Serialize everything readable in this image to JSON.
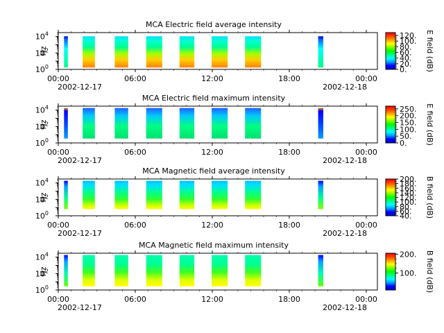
{
  "chart_data": [
    {
      "type": "heatmap",
      "title": "MCA  Electric field average intensity",
      "ylabel": "Hz",
      "yscale": "log",
      "ylim": [
        1,
        30000
      ],
      "yticks": [
        {
          "v": 1,
          "b": "10",
          "e": "0"
        },
        {
          "v": 100,
          "b": "10",
          "e": "2"
        },
        {
          "v": 10000,
          "b": "10",
          "e": "4"
        }
      ],
      "xticks": [
        "00:00",
        "06:00",
        "12:00",
        "18:00",
        "00:00"
      ],
      "xdates": [
        "2002-12-17",
        "2002-12-18"
      ],
      "colorbar_label": "E field (dB)",
      "clim": [
        0,
        130
      ],
      "cticks": [
        {
          "v": 0,
          "t": "0."
        },
        {
          "v": 20,
          "t": "20."
        },
        {
          "v": 40,
          "t": "40."
        },
        {
          "v": 60,
          "t": "60."
        },
        {
          "v": 80,
          "t": "80."
        },
        {
          "v": 100,
          "t": "100."
        },
        {
          "v": 120,
          "t": "120."
        }
      ],
      "style": "eavg"
    },
    {
      "type": "heatmap",
      "title": "MCA  Electric field maximum intensity",
      "ylabel": "Hz",
      "yscale": "log",
      "ylim": [
        1,
        30000
      ],
      "yticks": [
        {
          "v": 1,
          "b": "10",
          "e": "0"
        },
        {
          "v": 100,
          "b": "10",
          "e": "2"
        },
        {
          "v": 10000,
          "b": "10",
          "e": "4"
        }
      ],
      "xticks": [
        "00:00",
        "06:00",
        "12:00",
        "18:00",
        "00:00"
      ],
      "xdates": [
        "2002-12-17",
        "2002-12-18"
      ],
      "colorbar_label": "E field (dB)",
      "clim": [
        0,
        270
      ],
      "cticks": [
        {
          "v": 0,
          "t": "0."
        },
        {
          "v": 50,
          "t": "50."
        },
        {
          "v": 100,
          "t": "100."
        },
        {
          "v": 150,
          "t": "150."
        },
        {
          "v": 200,
          "t": "200."
        },
        {
          "v": 250,
          "t": "250."
        }
      ],
      "style": "emax"
    },
    {
      "type": "heatmap",
      "title": "MCA  Magnetic field average intensity",
      "ylabel": "Hz",
      "yscale": "log",
      "ylim": [
        1,
        30000
      ],
      "yticks": [
        {
          "v": 1,
          "b": "10",
          "e": "0"
        },
        {
          "v": 100,
          "b": "10",
          "e": "2"
        },
        {
          "v": 10000,
          "b": "10",
          "e": "4"
        }
      ],
      "xticks": [
        "00:00",
        "06:00",
        "12:00",
        "18:00",
        "00:00"
      ],
      "xdates": [
        "2002-12-17",
        "2002-12-18"
      ],
      "colorbar_label": "B field (dB)",
      "clim": [
        40,
        200
      ],
      "cticks": [
        {
          "v": 40,
          "t": "40."
        },
        {
          "v": 60,
          "t": "60."
        },
        {
          "v": 80,
          "t": "80."
        },
        {
          "v": 100,
          "t": "100."
        },
        {
          "v": 120,
          "t": "120."
        },
        {
          "v": 140,
          "t": "140."
        },
        {
          "v": 160,
          "t": "160."
        },
        {
          "v": 180,
          "t": "180."
        },
        {
          "v": 200,
          "t": "200."
        }
      ],
      "style": "bavg"
    },
    {
      "type": "heatmap",
      "title": "MCA  Magnetic field maximum intensity",
      "ylabel": "Hz",
      "yscale": "log",
      "ylim": [
        1,
        30000
      ],
      "yticks": [
        {
          "v": 1,
          "b": "10",
          "e": "0"
        },
        {
          "v": 100,
          "b": "10",
          "e": "2"
        },
        {
          "v": 10000,
          "b": "10",
          "e": "4"
        }
      ],
      "xticks": [
        "00:00",
        "06:00",
        "12:00",
        "18:00",
        "00:00"
      ],
      "xdates": [
        "2002-12-17",
        "2002-12-18"
      ],
      "colorbar_label": "B field (dB)",
      "clim": [
        10,
        205
      ],
      "cticks": [
        {
          "v": 100,
          "t": "100."
        },
        {
          "v": 200,
          "t": "200."
        }
      ],
      "style": "bmax"
    }
  ],
  "colors": {
    "colormap": [
      "#0000d0",
      "#0000ff",
      "#00a0ff",
      "#00ffff",
      "#00ff80",
      "#00ff00",
      "#80ff00",
      "#ffff00",
      "#ffa000",
      "#ff4000",
      "#ff0000"
    ]
  }
}
